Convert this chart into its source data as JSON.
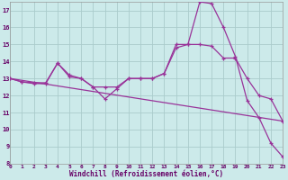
{
  "background_color": "#cceaea",
  "grid_color": "#aacccc",
  "line_color": "#993399",
  "xlabel": "Windchill (Refroidissement éolien,°C)",
  "xlim": [
    0,
    23
  ],
  "ylim": [
    8,
    17.5
  ],
  "ytick_vals": [
    8,
    9,
    10,
    11,
    12,
    13,
    14,
    15,
    16,
    17
  ],
  "xtick_vals": [
    0,
    1,
    2,
    3,
    4,
    5,
    6,
    7,
    8,
    9,
    10,
    11,
    12,
    13,
    14,
    15,
    16,
    17,
    18,
    19,
    20,
    21,
    22,
    23
  ],
  "curve1_x": [
    0,
    1,
    2,
    3,
    4,
    5,
    6,
    7,
    8,
    9,
    10,
    11,
    12,
    13,
    14,
    15,
    16,
    17,
    18,
    19,
    20,
    21,
    22,
    23
  ],
  "curve1_y": [
    13.0,
    12.8,
    12.7,
    12.7,
    13.9,
    13.2,
    13.0,
    12.5,
    11.8,
    12.4,
    13.0,
    13.0,
    13.0,
    13.3,
    14.8,
    15.0,
    17.5,
    17.4,
    16.0,
    14.3,
    11.7,
    10.7,
    9.2,
    8.4
  ],
  "curve2_x": [
    0,
    1,
    2,
    3,
    4,
    5,
    6,
    7,
    8,
    9,
    10,
    11,
    12,
    13,
    14,
    15,
    16,
    17,
    18,
    19,
    20,
    21,
    22,
    23
  ],
  "curve2_y": [
    13.0,
    12.8,
    12.75,
    12.75,
    13.9,
    13.1,
    13.0,
    12.5,
    12.5,
    12.5,
    13.0,
    13.0,
    13.0,
    13.3,
    15.0,
    15.0,
    15.0,
    14.9,
    14.2,
    14.2,
    13.0,
    12.0,
    11.8,
    10.5
  ],
  "line3_x": [
    0,
    23
  ],
  "line3_y": [
    13.0,
    10.5
  ]
}
